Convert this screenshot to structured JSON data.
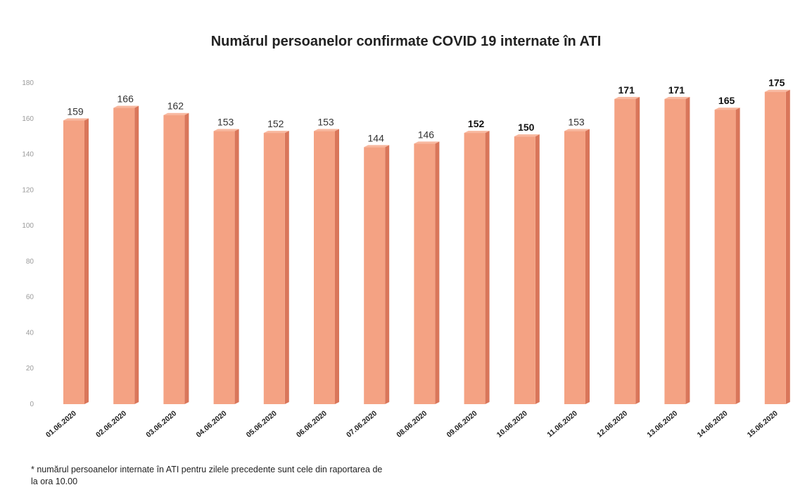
{
  "chart_data": {
    "type": "bar",
    "title": "Numărul persoanelor confirmate COVID 19 internate în ATI",
    "categories": [
      "01.06.2020",
      "02.06.2020",
      "03.06.2020",
      "04.06.2020",
      "05.06.2020",
      "06.06.2020",
      "07.06.2020",
      "08.06.2020",
      "09.06.2020",
      "10.06.2020",
      "11.06.2020",
      "12.06.2020",
      "13.06.2020",
      "14.06.2020",
      "15.06.2020"
    ],
    "values": [
      159,
      166,
      162,
      153,
      152,
      153,
      144,
      146,
      152,
      150,
      153,
      171,
      171,
      165,
      175
    ],
    "bold_labels": [
      false,
      false,
      false,
      false,
      false,
      false,
      false,
      false,
      true,
      true,
      false,
      true,
      true,
      true,
      true
    ],
    "yticks": [
      0,
      20,
      40,
      60,
      80,
      100,
      120,
      140,
      160,
      180
    ],
    "ylim": [
      0,
      180
    ],
    "grid": false,
    "legend": "none",
    "bar_colors": {
      "front": "#f4a283",
      "side": "#d9765a",
      "top": "#f8b89f"
    }
  },
  "footnote": {
    "line1": "* numărul persoanelor internate în ATI pentru zilele precedente sunt cele din raportarea de",
    "line2": "la ora 10.00"
  }
}
